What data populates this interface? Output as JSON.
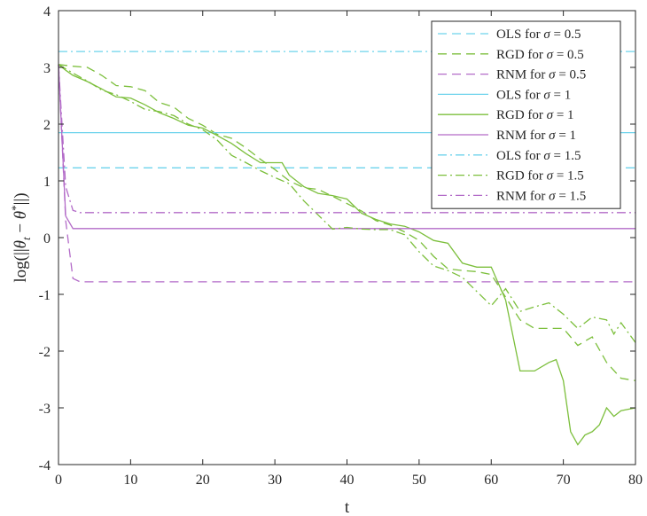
{
  "chart_data": {
    "type": "line",
    "title": "",
    "xlabel": "t",
    "ylabel": "log(||θt − θ*||)",
    "ylabel_parts": {
      "prefix": "log(||",
      "theta": "θ",
      "sub": "t",
      "minus": " − ",
      "theta2": "θ",
      "sup": "*",
      "suffix": "||)"
    },
    "xlim": [
      0,
      80
    ],
    "ylim": [
      -4,
      4
    ],
    "xticks": [
      0,
      10,
      20,
      30,
      40,
      50,
      60,
      70,
      80
    ],
    "yticks": [
      -4,
      -3,
      -2,
      -1,
      0,
      1,
      2,
      3,
      4
    ],
    "ytick_labels": [
      "-4",
      "-3",
      "-2",
      "-1",
      "0",
      "1",
      "2",
      "3",
      "4"
    ],
    "grid": false,
    "legend_position": "top-right",
    "colors": {
      "ols": "#6dd3ec",
      "rgd": "#7cbf3c",
      "rnm": "#b36bc8",
      "axis": "#262626"
    },
    "series": [
      {
        "name": "OLS for σ = 0.5",
        "label_prefix": "OLS for ",
        "label_sigma": "σ",
        "label_value": " = 0.5",
        "style": "dashed",
        "color": "#6dd3ec",
        "constant": 1.23
      },
      {
        "name": "RGD for σ = 0.5",
        "label_prefix": "RGD for ",
        "label_sigma": "σ",
        "label_value": " = 0.5",
        "style": "dashed",
        "color": "#7cbf3c",
        "points": [
          [
            0,
            3.05
          ],
          [
            2,
            3.02
          ],
          [
            4,
            3.0
          ],
          [
            6,
            2.86
          ],
          [
            8,
            2.68
          ],
          [
            10,
            2.66
          ],
          [
            12,
            2.59
          ],
          [
            14,
            2.38
          ],
          [
            16,
            2.3
          ],
          [
            18,
            2.1
          ],
          [
            20,
            1.98
          ],
          [
            22,
            1.82
          ],
          [
            24,
            1.75
          ],
          [
            26,
            1.58
          ],
          [
            28,
            1.38
          ],
          [
            30,
            1.2
          ],
          [
            32,
            1.0
          ],
          [
            34,
            0.88
          ],
          [
            36,
            0.85
          ],
          [
            38,
            0.73
          ],
          [
            40,
            0.6
          ],
          [
            42,
            0.47
          ],
          [
            44,
            0.3
          ],
          [
            46,
            0.22
          ],
          [
            48,
            0.1
          ],
          [
            50,
            -0.05
          ],
          [
            52,
            -0.33
          ],
          [
            54,
            -0.55
          ],
          [
            56,
            -0.58
          ],
          [
            58,
            -0.6
          ],
          [
            60,
            -0.65
          ],
          [
            62,
            -1.05
          ],
          [
            64,
            -1.45
          ],
          [
            66,
            -1.6
          ],
          [
            68,
            -1.6
          ],
          [
            70,
            -1.6
          ],
          [
            72,
            -1.9
          ],
          [
            74,
            -1.75
          ],
          [
            76,
            -2.2
          ],
          [
            78,
            -2.48
          ],
          [
            80,
            -2.52
          ]
        ]
      },
      {
        "name": "RNM for σ = 0.5",
        "label_prefix": "RNM for ",
        "label_sigma": "σ",
        "label_value": " = 0.5",
        "style": "dashed",
        "color": "#b36bc8",
        "points": [
          [
            0,
            3.05
          ],
          [
            1,
            0.3
          ],
          [
            2,
            -0.72
          ],
          [
            3,
            -0.78
          ],
          [
            80,
            -0.78
          ]
        ]
      },
      {
        "name": "OLS for σ = 1",
        "label_prefix": "OLS for ",
        "label_sigma": "σ",
        "label_value": " = 1",
        "style": "solid",
        "color": "#6dd3ec",
        "constant": 1.85
      },
      {
        "name": "RGD for σ = 1",
        "label_prefix": "RGD for ",
        "label_sigma": "σ",
        "label_value": " = 1",
        "style": "solid",
        "color": "#7cbf3c",
        "points": [
          [
            0,
            3.05
          ],
          [
            1,
            2.95
          ],
          [
            2,
            2.86
          ],
          [
            4,
            2.75
          ],
          [
            6,
            2.62
          ],
          [
            8,
            2.48
          ],
          [
            10,
            2.46
          ],
          [
            12,
            2.34
          ],
          [
            14,
            2.2
          ],
          [
            16,
            2.1
          ],
          [
            18,
            1.98
          ],
          [
            20,
            1.93
          ],
          [
            22,
            1.8
          ],
          [
            24,
            1.66
          ],
          [
            26,
            1.48
          ],
          [
            28,
            1.32
          ],
          [
            30,
            1.32
          ],
          [
            31,
            1.32
          ],
          [
            32,
            1.1
          ],
          [
            34,
            0.9
          ],
          [
            36,
            0.78
          ],
          [
            38,
            0.74
          ],
          [
            40,
            0.68
          ],
          [
            42,
            0.43
          ],
          [
            44,
            0.32
          ],
          [
            46,
            0.24
          ],
          [
            48,
            0.2
          ],
          [
            50,
            0.1
          ],
          [
            52,
            -0.05
          ],
          [
            54,
            -0.1
          ],
          [
            56,
            -0.45
          ],
          [
            58,
            -0.52
          ],
          [
            60,
            -0.52
          ],
          [
            62,
            -1.1
          ],
          [
            64,
            -2.35
          ],
          [
            66,
            -2.35
          ],
          [
            68,
            -2.2
          ],
          [
            69,
            -2.15
          ],
          [
            70,
            -2.52
          ],
          [
            71,
            -3.42
          ],
          [
            72,
            -3.65
          ],
          [
            73,
            -3.48
          ],
          [
            74,
            -3.42
          ],
          [
            75,
            -3.3
          ],
          [
            76,
            -3.0
          ],
          [
            77,
            -3.15
          ],
          [
            78,
            -3.05
          ],
          [
            80,
            -3.0
          ]
        ]
      },
      {
        "name": "RNM for σ = 1",
        "label_prefix": "RNM for ",
        "label_sigma": "σ",
        "label_value": " = 1",
        "style": "solid",
        "color": "#b36bc8",
        "points": [
          [
            0,
            3.05
          ],
          [
            1,
            0.38
          ],
          [
            2,
            0.16
          ],
          [
            80,
            0.16
          ]
        ]
      },
      {
        "name": "OLS for σ = 1.5",
        "label_prefix": "OLS for ",
        "label_sigma": "σ",
        "label_value": " = 1.5",
        "style": "dashdot",
        "color": "#6dd3ec",
        "constant": 3.28
      },
      {
        "name": "RGD for σ = 1.5",
        "label_prefix": "RGD for ",
        "label_sigma": "σ",
        "label_value": " = 1.5",
        "style": "dashdot",
        "color": "#7cbf3c",
        "points": [
          [
            0,
            3.05
          ],
          [
            2,
            2.9
          ],
          [
            4,
            2.76
          ],
          [
            6,
            2.6
          ],
          [
            8,
            2.52
          ],
          [
            10,
            2.4
          ],
          [
            12,
            2.26
          ],
          [
            14,
            2.22
          ],
          [
            16,
            2.15
          ],
          [
            18,
            2.0
          ],
          [
            20,
            1.9
          ],
          [
            22,
            1.72
          ],
          [
            24,
            1.45
          ],
          [
            26,
            1.32
          ],
          [
            28,
            1.18
          ],
          [
            30,
            1.06
          ],
          [
            32,
            0.95
          ],
          [
            34,
            0.65
          ],
          [
            36,
            0.4
          ],
          [
            38,
            0.15
          ],
          [
            40,
            0.18
          ],
          [
            42,
            0.15
          ],
          [
            44,
            0.14
          ],
          [
            46,
            0.14
          ],
          [
            48,
            0.05
          ],
          [
            50,
            -0.25
          ],
          [
            52,
            -0.5
          ],
          [
            54,
            -0.58
          ],
          [
            56,
            -0.7
          ],
          [
            58,
            -0.95
          ],
          [
            60,
            -1.2
          ],
          [
            62,
            -0.9
          ],
          [
            64,
            -1.3
          ],
          [
            66,
            -1.22
          ],
          [
            68,
            -1.15
          ],
          [
            70,
            -1.35
          ],
          [
            72,
            -1.6
          ],
          [
            74,
            -1.4
          ],
          [
            76,
            -1.45
          ],
          [
            77,
            -1.7
          ],
          [
            78,
            -1.5
          ],
          [
            80,
            -1.85
          ]
        ]
      },
      {
        "name": "RNM for σ = 1.5",
        "label_prefix": "RNM for ",
        "label_sigma": "σ",
        "label_value": " = 1.5",
        "style": "dashdot",
        "color": "#b36bc8",
        "points": [
          [
            0,
            3.05
          ],
          [
            1,
            0.9
          ],
          [
            2,
            0.48
          ],
          [
            3,
            0.44
          ],
          [
            80,
            0.44
          ]
        ]
      }
    ]
  }
}
